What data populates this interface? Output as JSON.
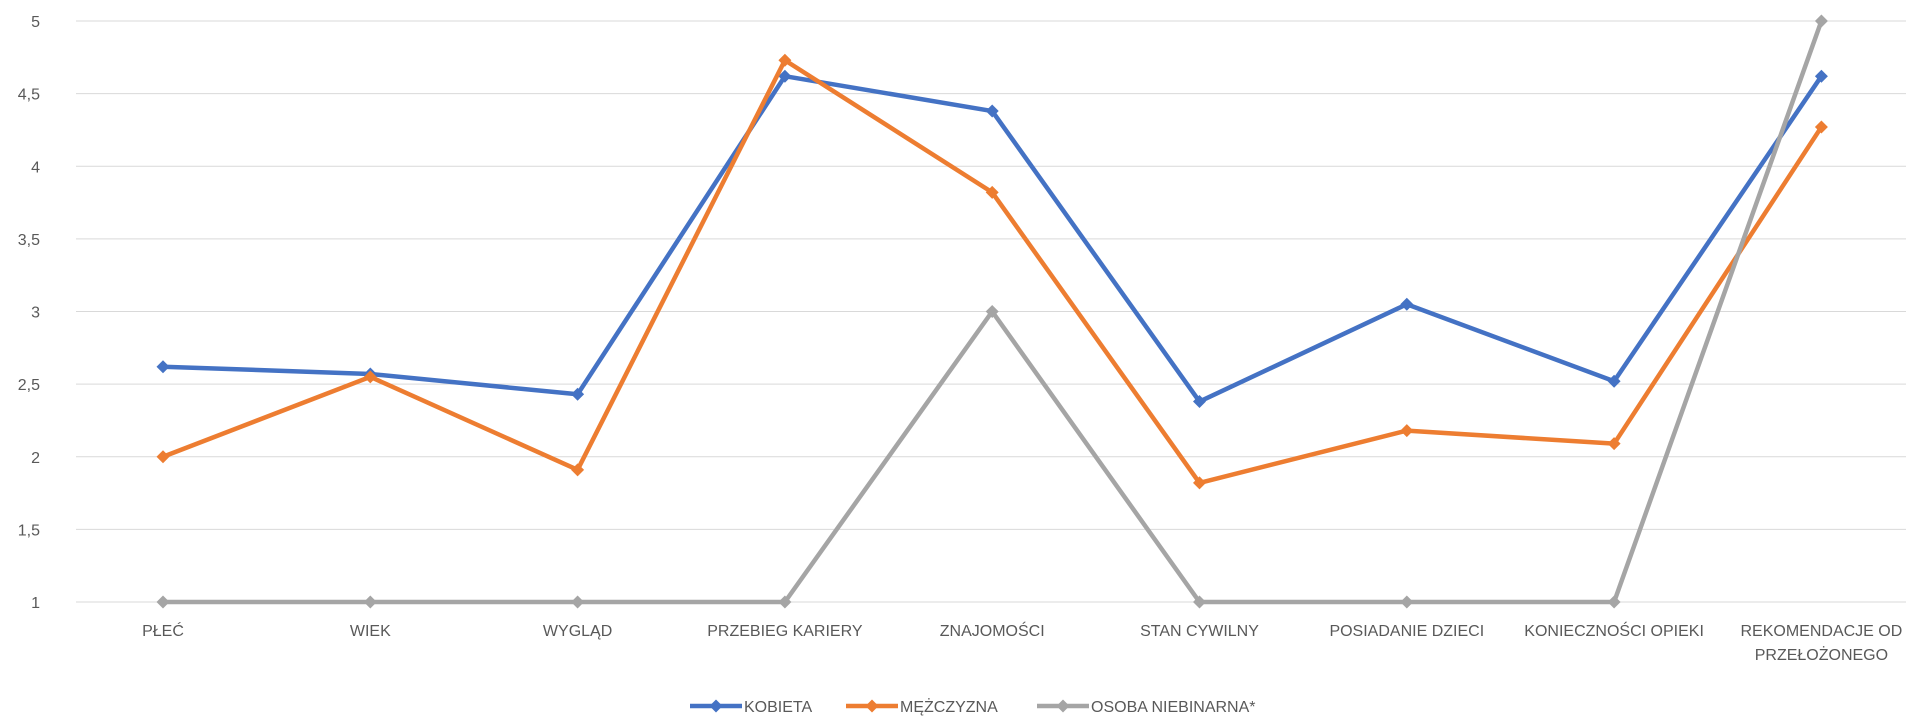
{
  "chart_data": {
    "type": "line",
    "categories": [
      [
        "PŁEĆ"
      ],
      [
        "WIEK"
      ],
      [
        "WYGLĄD"
      ],
      [
        "PRZEBIEG KARIERY"
      ],
      [
        "ZNAJOMOŚCI"
      ],
      [
        "STAN CYWILNY"
      ],
      [
        "POSIADANIE DZIECI"
      ],
      [
        "KONIECZNOŚCI OPIEKI"
      ],
      [
        "REKOMENDACJE OD",
        "PRZEŁOŻONEGO"
      ]
    ],
    "y_ticks": [
      "1",
      "1,5",
      "2",
      "2,5",
      "3",
      "3,5",
      "4",
      "4,5",
      "5"
    ],
    "ylim": [
      1,
      5
    ],
    "grid": true,
    "legend_position": "bottom",
    "series": [
      {
        "name": "KOBIETA",
        "color": "#4472C4",
        "values": [
          2.62,
          2.57,
          2.43,
          4.62,
          4.38,
          2.38,
          3.05,
          2.52,
          4.62
        ]
      },
      {
        "name": "MĘŻCZYZNA",
        "color": "#ED7D31",
        "values": [
          2.0,
          2.55,
          1.91,
          4.73,
          3.82,
          1.82,
          2.18,
          2.09,
          4.27
        ]
      },
      {
        "name": "OSOBA NIEBINARNA*",
        "color": "#A5A5A5",
        "values": [
          1,
          1,
          1,
          1,
          3,
          1,
          1,
          1,
          5
        ]
      }
    ]
  }
}
